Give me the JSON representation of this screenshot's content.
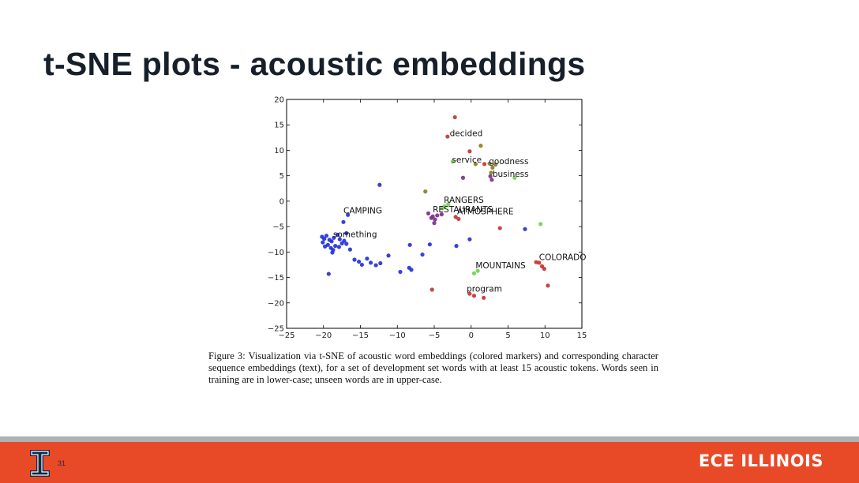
{
  "slide": {
    "title": "t-SNE plots - acoustic embeddings",
    "page_number": "31",
    "brand": "ECE ILLINOIS",
    "logo_letter": "I"
  },
  "caption": "Figure 3: Visualization via t-SNE of acoustic word embeddings (colored markers) and corresponding character sequence embeddings (text), for a set of development set words with at least 15 acoustic tokens. Words seen in training are in lower-case; unseen words are in upper-case.",
  "colors": {
    "accent_orange": "#e84a27",
    "navy": "#13294b",
    "footer_gray": "#aeb2b4"
  },
  "chart_data": {
    "type": "scatter",
    "xlim": [
      -25,
      15
    ],
    "ylim": [
      -25,
      20
    ],
    "xticks": [
      "−25",
      "−20",
      "−15",
      "−10",
      "−5",
      "0",
      "5",
      "10",
      "15"
    ],
    "yticks": [
      "20",
      "15",
      "10",
      "5",
      "0",
      "−5",
      "−10",
      "−15",
      "−20",
      "−25"
    ],
    "grid": false,
    "labels": [
      {
        "text": "decided",
        "x": -2.9,
        "y": 12.8
      },
      {
        "text": "service",
        "x": -2.6,
        "y": 7.6
      },
      {
        "text": "goodness",
        "x": 2.4,
        "y": 7.3
      },
      {
        "text": "business",
        "x": 2.9,
        "y": 4.8
      },
      {
        "text": "RANGERS",
        "x": -3.7,
        "y": -0.3
      },
      {
        "text": "RESTAURANTS",
        "x": -5.2,
        "y": -2.2
      },
      {
        "text": "ATMOSPHERE",
        "x": -1.9,
        "y": -2.6
      },
      {
        "text": "CAMPING",
        "x": -17.3,
        "y": -2.4
      },
      {
        "text": "something",
        "x": -18.7,
        "y": -7.1
      },
      {
        "text": "COLORADO",
        "x": 9.2,
        "y": -11.6
      },
      {
        "text": "MOUNTAINS",
        "x": 0.6,
        "y": -13.2
      },
      {
        "text": "program",
        "x": -0.6,
        "y": -17.8
      }
    ],
    "series": [
      {
        "color": "#1f2fd6",
        "points": [
          [
            -19.6,
            -6.8
          ],
          [
            -19.9,
            -7.4
          ],
          [
            -20.1,
            -8.1
          ],
          [
            -19.4,
            -8.6
          ],
          [
            -18.9,
            -7.9
          ],
          [
            -18.6,
            -7.2
          ],
          [
            -19.2,
            -7.6
          ],
          [
            -18.4,
            -8.8
          ],
          [
            -17.8,
            -7.5
          ],
          [
            -17.5,
            -8.3
          ],
          [
            -19.0,
            -9.2
          ],
          [
            -18.1,
            -6.6
          ],
          [
            -20.2,
            -7.0
          ],
          [
            -18.7,
            -9.6
          ],
          [
            -17.9,
            -9.0
          ],
          [
            -17.2,
            -7.8
          ],
          [
            -19.8,
            -8.9
          ],
          [
            -16.9,
            -8.4
          ],
          [
            -16.4,
            -9.5
          ],
          [
            -18.8,
            -10.1
          ],
          [
            -16.9,
            -6.3
          ],
          [
            -17.3,
            -4.1
          ],
          [
            -16.7,
            -2.7
          ],
          [
            -15.8,
            -11.5
          ],
          [
            -15.2,
            -11.9
          ],
          [
            -14.1,
            -11.3
          ],
          [
            -13.6,
            -12.1
          ],
          [
            -14.8,
            -12.5
          ],
          [
            -12.9,
            -12.6
          ],
          [
            -12.3,
            -12.2
          ],
          [
            -11.2,
            -10.7
          ],
          [
            -8.4,
            -13.1
          ],
          [
            -8.1,
            -13.5
          ],
          [
            -9.6,
            -13.9
          ],
          [
            -8.3,
            -8.6
          ],
          [
            -6.6,
            -10.5
          ],
          [
            -5.6,
            -8.5
          ],
          [
            -2.0,
            -8.8
          ],
          [
            -0.2,
            -7.5
          ],
          [
            7.3,
            -5.5
          ],
          [
            -12.4,
            3.2
          ],
          [
            -19.3,
            -14.3
          ]
        ]
      },
      {
        "color": "#7a2b8a",
        "points": [
          [
            -5.8,
            -2.4
          ],
          [
            -5.2,
            -3.0
          ],
          [
            -4.9,
            -3.6
          ],
          [
            -5.0,
            -4.3
          ],
          [
            -4.6,
            -2.8
          ],
          [
            -4.0,
            -2.6
          ],
          [
            -5.4,
            -3.3
          ],
          [
            -1.1,
            4.6
          ],
          [
            2.6,
            4.9
          ],
          [
            2.8,
            4.2
          ]
        ]
      },
      {
        "color": "#c53030",
        "points": [
          [
            -3.2,
            12.7
          ],
          [
            -2.2,
            16.5
          ],
          [
            1.8,
            7.3
          ],
          [
            9.2,
            -12.1
          ],
          [
            9.6,
            -12.8
          ],
          [
            9.9,
            -13.3
          ],
          [
            8.8,
            -12.0
          ],
          [
            10.4,
            -16.6
          ],
          [
            -0.2,
            -18.2
          ],
          [
            0.4,
            -18.6
          ],
          [
            1.7,
            -19.0
          ],
          [
            -5.3,
            -17.4
          ],
          [
            -2.1,
            -3.1
          ],
          [
            -1.7,
            -3.5
          ],
          [
            -0.2,
            9.8
          ],
          [
            3.9,
            -5.3
          ]
        ]
      },
      {
        "color": "#8a7a22",
        "points": [
          [
            2.5,
            7.4
          ],
          [
            2.9,
            6.6
          ],
          [
            2.7,
            5.6
          ],
          [
            3.3,
            7.2
          ],
          [
            1.3,
            10.9
          ],
          [
            -6.2,
            1.9
          ],
          [
            0.6,
            7.3
          ]
        ]
      },
      {
        "color": "#72d24a",
        "points": [
          [
            -2.5,
            7.8
          ],
          [
            -3.6,
            -1.0
          ],
          [
            -3.9,
            -1.4
          ],
          [
            -3.1,
            -0.6
          ],
          [
            0.4,
            -14.2
          ],
          [
            0.9,
            -13.7
          ],
          [
            9.4,
            -4.5
          ],
          [
            5.9,
            4.6
          ]
        ]
      }
    ]
  }
}
